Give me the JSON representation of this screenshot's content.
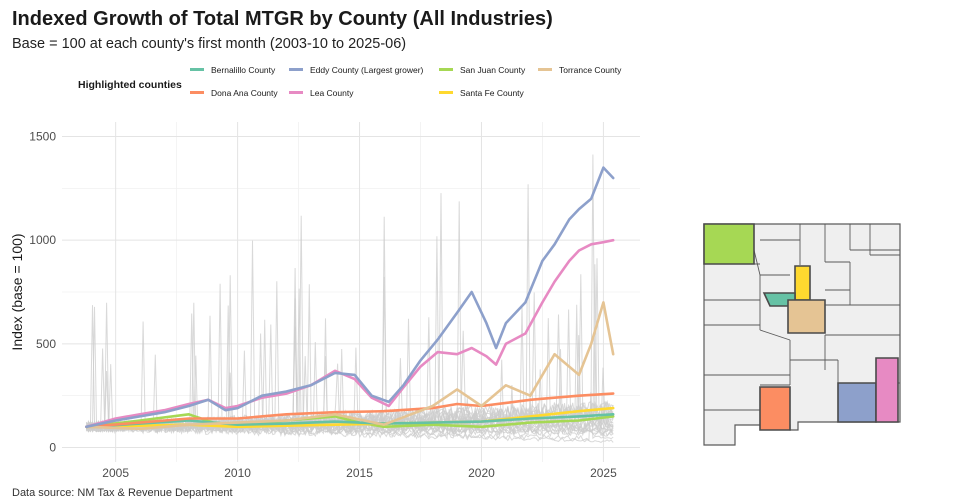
{
  "title": "Indexed Growth of Total MTGR by County (All Industries)",
  "subtitle": "Base = 100 at each county's first month (2003-10 to 2025-06)",
  "source": "Data source: NM Tax & Revenue Department",
  "chart_data": {
    "type": "line",
    "title": "Indexed Growth of Total MTGR by County (All Industries)",
    "subtitle": "Base = 100 at each county's first month (2003-10 to 2025-06)",
    "xlabel": "",
    "ylabel": "Index (base = 100)",
    "xlim": [
      2002.8,
      2026.5
    ],
    "ylim": [
      -70,
      1570
    ],
    "xticks": [
      2005,
      2010,
      2015,
      2020,
      2025
    ],
    "yticks": [
      0,
      500,
      1000,
      1500
    ],
    "grid": true,
    "legend_title": "Highlighted counties",
    "legend_position": "top",
    "series": [
      {
        "name": "Bernalillo County",
        "color": "#66c2a5",
        "x": [
          2003.8,
          2006,
          2008,
          2010,
          2012,
          2014,
          2016,
          2018,
          2020,
          2022,
          2024,
          2025.4
        ],
        "y": [
          100,
          115,
          130,
          110,
          115,
          125,
          115,
          120,
          125,
          140,
          150,
          160
        ]
      },
      {
        "name": "Dona Ana County",
        "color": "#fc8d62",
        "x": [
          2003.8,
          2006,
          2008,
          2010,
          2012,
          2014,
          2016,
          2018,
          2019,
          2020,
          2021,
          2022,
          2023,
          2024,
          2025.4
        ],
        "y": [
          100,
          120,
          140,
          140,
          160,
          170,
          175,
          190,
          210,
          200,
          215,
          230,
          240,
          250,
          260
        ]
      },
      {
        "name": "Eddy County (Largest grower)",
        "color": "#8da0cb",
        "x": [
          2003.8,
          2005,
          2006,
          2007,
          2008,
          2008.8,
          2009.5,
          2010,
          2011,
          2012,
          2013,
          2014,
          2014.8,
          2015.5,
          2016.2,
          2016.8,
          2017.5,
          2018.2,
          2019,
          2019.6,
          2020.2,
          2020.6,
          2021,
          2021.8,
          2022.5,
          2023,
          2023.6,
          2024,
          2024.5,
          2025,
          2025.4
        ],
        "y": [
          100,
          130,
          150,
          170,
          200,
          230,
          180,
          190,
          250,
          270,
          300,
          360,
          350,
          250,
          220,
          300,
          420,
          520,
          650,
          750,
          600,
          480,
          600,
          700,
          900,
          980,
          1100,
          1150,
          1200,
          1350,
          1300
        ]
      },
      {
        "name": "Lea County",
        "color": "#e78ac3",
        "x": [
          2003.8,
          2005,
          2006,
          2007,
          2008,
          2008.8,
          2009.5,
          2010,
          2011,
          2012,
          2013,
          2014,
          2014.8,
          2015.5,
          2016.2,
          2016.8,
          2017.5,
          2018.2,
          2019,
          2019.6,
          2020.2,
          2020.6,
          2021,
          2021.8,
          2022.5,
          2023,
          2023.6,
          2024,
          2024.5,
          2025,
          2025.4
        ],
        "y": [
          100,
          140,
          160,
          180,
          210,
          230,
          190,
          200,
          240,
          260,
          300,
          370,
          330,
          240,
          200,
          290,
          390,
          460,
          450,
          480,
          440,
          400,
          500,
          550,
          700,
          800,
          900,
          950,
          980,
          990,
          1000
        ]
      },
      {
        "name": "San Juan County",
        "color": "#a6d854",
        "x": [
          2003.8,
          2006,
          2008,
          2009,
          2010,
          2012,
          2014,
          2015,
          2016,
          2018,
          2020,
          2022,
          2024,
          2025.4
        ],
        "y": [
          100,
          130,
          160,
          120,
          110,
          130,
          150,
          120,
          100,
          110,
          100,
          120,
          130,
          150
        ]
      },
      {
        "name": "Santa Fe County",
        "color": "#ffd92f",
        "x": [
          2003.8,
          2006,
          2008,
          2010,
          2012,
          2014,
          2016,
          2018,
          2020,
          2022,
          2024,
          2025.4
        ],
        "y": [
          100,
          105,
          110,
          100,
          105,
          110,
          115,
          120,
          125,
          150,
          175,
          190
        ]
      },
      {
        "name": "Torrance County",
        "color": "#e5c494",
        "x": [
          2003.8,
          2006,
          2008,
          2010,
          2012,
          2014,
          2016,
          2018,
          2019,
          2020,
          2021,
          2022,
          2023,
          2024,
          2024.5,
          2025,
          2025.4
        ],
        "y": [
          100,
          90,
          110,
          120,
          130,
          160,
          110,
          200,
          280,
          200,
          300,
          250,
          450,
          350,
          500,
          700,
          450
        ]
      }
    ],
    "other_counties_color": "#cccccc"
  },
  "map": {
    "highlight": [
      {
        "county": "San Juan County",
        "color": "#a6d854"
      },
      {
        "county": "Santa Fe County",
        "color": "#ffd92f"
      },
      {
        "county": "Bernalillo County",
        "color": "#66c2a5"
      },
      {
        "county": "Torrance County",
        "color": "#e5c494"
      },
      {
        "county": "Dona Ana County",
        "color": "#fc8d62"
      },
      {
        "county": "Eddy County (Largest grower)",
        "color": "#8da0cb"
      },
      {
        "county": "Lea County",
        "color": "#e78ac3"
      }
    ]
  }
}
